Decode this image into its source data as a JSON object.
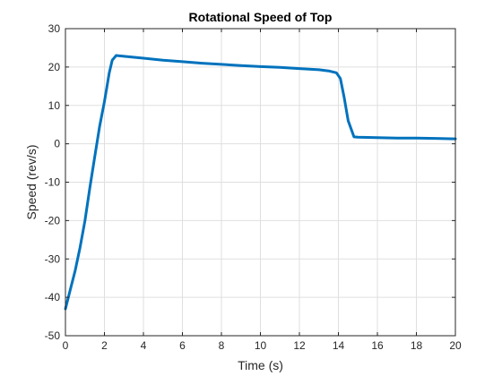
{
  "chart_data": {
    "type": "line",
    "title": "Rotational Speed of Top",
    "xlabel": "Time (s)",
    "ylabel": "Speed (rev/s)",
    "xlim": [
      0,
      20
    ],
    "ylim": [
      -50,
      30
    ],
    "xticks": [
      0,
      2,
      4,
      6,
      8,
      10,
      12,
      14,
      16,
      18,
      20
    ],
    "yticks": [
      -50,
      -40,
      -30,
      -20,
      -10,
      0,
      10,
      20,
      30
    ],
    "xtick_labels": [
      "0",
      "2",
      "4",
      "6",
      "8",
      "10",
      "12",
      "14",
      "16",
      "18",
      "20"
    ],
    "ytick_labels": [
      "-50",
      "-40",
      "-30",
      "-20",
      "-10",
      "0",
      "10",
      "20",
      "30"
    ],
    "grid": true,
    "colors": {
      "line": "#0072BD",
      "grid": "#dfdfdf",
      "axis": "#262626"
    },
    "series": [
      {
        "x": [
          0,
          0.25,
          0.5,
          0.75,
          1.0,
          1.25,
          1.5,
          1.75,
          2.0,
          2.25,
          2.4,
          2.6,
          3.0,
          4.0,
          5.0,
          6.0,
          7.0,
          8.0,
          9.0,
          10.0,
          11.0,
          12.0,
          13.0,
          13.5,
          13.9,
          14.1,
          14.3,
          14.5,
          14.8,
          15.0,
          16.0,
          17.0,
          18.0,
          19.0,
          20.0
        ],
        "y": [
          -43,
          -38,
          -33,
          -27,
          -20,
          -11.5,
          -3.5,
          4.5,
          11,
          18.5,
          21.8,
          23.0,
          22.8,
          22.3,
          21.8,
          21.4,
          21.0,
          20.7,
          20.4,
          20.1,
          19.9,
          19.6,
          19.3,
          19.0,
          18.5,
          17.0,
          12.0,
          6.0,
          1.8,
          1.7,
          1.6,
          1.5,
          1.5,
          1.4,
          1.3
        ]
      }
    ]
  }
}
